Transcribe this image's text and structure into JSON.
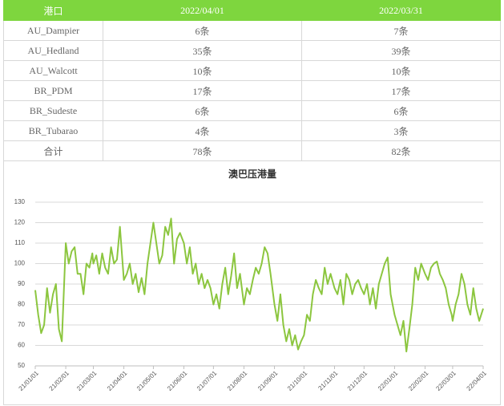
{
  "table": {
    "header": [
      "港口",
      "2022/04/01",
      "2022/03/31"
    ],
    "rows": [
      [
        "AU_Dampier",
        "6条",
        "7条"
      ],
      [
        "AU_Hedland",
        "35条",
        "39条"
      ],
      [
        "AU_Walcott",
        "10条",
        "10条"
      ],
      [
        "BR_PDM",
        "17条",
        "17条"
      ],
      [
        "BR_Sudeste",
        "6条",
        "6条"
      ],
      [
        "BR_Tubarao",
        "4条",
        "3条"
      ],
      [
        "合计",
        "78条",
        "82条"
      ]
    ]
  },
  "chart_data": {
    "type": "line",
    "title": "澳巴压港量",
    "color": "#8cc63f",
    "grid": true,
    "ylim": [
      50,
      130
    ],
    "yticks": [
      50,
      60,
      70,
      80,
      90,
      100,
      110,
      120,
      130
    ],
    "xticks": [
      "21/01/01",
      "21/02/01",
      "21/03/01",
      "21/04/01",
      "21/05/01",
      "21/06/01",
      "21/07/01",
      "21/08/01",
      "21/09/01",
      "21/10/01",
      "21/11/01",
      "21/12/01",
      "22/01/01",
      "22/02/01",
      "22/03/01",
      "22/04/01"
    ],
    "x": [
      "21/01/01",
      "21/01/04",
      "21/01/07",
      "21/01/10",
      "21/01/13",
      "21/01/16",
      "21/01/19",
      "21/01/22",
      "21/01/25",
      "21/01/28",
      "21/02/01",
      "21/02/04",
      "21/02/07",
      "21/02/10",
      "21/02/13",
      "21/02/16",
      "21/02/19",
      "21/02/22",
      "21/02/25",
      "21/02/28",
      "21/03/01",
      "21/03/04",
      "21/03/07",
      "21/03/10",
      "21/03/13",
      "21/03/16",
      "21/03/19",
      "21/03/22",
      "21/03/25",
      "21/03/28",
      "21/04/01",
      "21/04/04",
      "21/04/07",
      "21/04/10",
      "21/04/13",
      "21/04/16",
      "21/04/19",
      "21/04/22",
      "21/04/25",
      "21/04/28",
      "21/05/01",
      "21/05/04",
      "21/05/07",
      "21/05/10",
      "21/05/13",
      "21/05/16",
      "21/05/19",
      "21/05/22",
      "21/05/25",
      "21/05/28",
      "21/06/01",
      "21/06/04",
      "21/06/07",
      "21/06/10",
      "21/06/13",
      "21/06/16",
      "21/06/19",
      "21/06/22",
      "21/06/25",
      "21/06/28",
      "21/07/01",
      "21/07/04",
      "21/07/07",
      "21/07/10",
      "21/07/13",
      "21/07/16",
      "21/07/19",
      "21/07/22",
      "21/07/25",
      "21/07/28",
      "21/08/01",
      "21/08/04",
      "21/08/07",
      "21/08/10",
      "21/08/13",
      "21/08/16",
      "21/08/19",
      "21/08/22",
      "21/08/25",
      "21/08/28",
      "21/09/01",
      "21/09/04",
      "21/09/07",
      "21/09/10",
      "21/09/13",
      "21/09/16",
      "21/09/19",
      "21/09/22",
      "21/09/25",
      "21/09/28",
      "21/10/01",
      "21/10/04",
      "21/10/07",
      "21/10/10",
      "21/10/13",
      "21/10/16",
      "21/10/19",
      "21/10/22",
      "21/10/25",
      "21/10/28",
      "21/11/01",
      "21/11/04",
      "21/11/07",
      "21/11/10",
      "21/11/13",
      "21/11/16",
      "21/11/19",
      "21/11/22",
      "21/11/25",
      "21/11/28",
      "21/12/01",
      "21/12/04",
      "21/12/07",
      "21/12/10",
      "21/12/13",
      "21/12/16",
      "21/12/19",
      "21/12/22",
      "21/12/25",
      "21/12/28",
      "22/01/01",
      "22/01/04",
      "22/01/07",
      "22/01/10",
      "22/01/13",
      "22/01/16",
      "22/01/19",
      "22/01/22",
      "22/01/25",
      "22/01/28",
      "22/02/01",
      "22/02/04",
      "22/02/07",
      "22/02/10",
      "22/02/13",
      "22/02/16",
      "22/02/19",
      "22/02/22",
      "22/02/25",
      "22/02/28",
      "22/03/01",
      "22/03/04",
      "22/03/07",
      "22/03/10",
      "22/03/13",
      "22/03/16",
      "22/03/19",
      "22/03/22",
      "22/03/25",
      "22/03/28",
      "22/04/01"
    ],
    "values": [
      87,
      75,
      66,
      70,
      88,
      76,
      85,
      90,
      68,
      62,
      110,
      100,
      106,
      108,
      95,
      95,
      85,
      100,
      98,
      105,
      100,
      104,
      95,
      105,
      98,
      95,
      108,
      100,
      102,
      118,
      92,
      95,
      100,
      90,
      95,
      86,
      93,
      85,
      100,
      110,
      120,
      110,
      100,
      104,
      118,
      114,
      122,
      100,
      112,
      115,
      110,
      100,
      108,
      95,
      100,
      90,
      95,
      88,
      92,
      88,
      80,
      85,
      78,
      90,
      98,
      85,
      94,
      105,
      88,
      95,
      80,
      88,
      85,
      92,
      98,
      95,
      100,
      108,
      105,
      95,
      80,
      72,
      85,
      70,
      62,
      68,
      60,
      65,
      58,
      62,
      65,
      75,
      72,
      85,
      92,
      88,
      85,
      98,
      90,
      95,
      88,
      85,
      92,
      80,
      95,
      92,
      85,
      90,
      92,
      88,
      85,
      90,
      80,
      88,
      78,
      90,
      95,
      100,
      103,
      85,
      75,
      70,
      65,
      72,
      57,
      68,
      80,
      98,
      92,
      100,
      95,
      92,
      98,
      100,
      101,
      95,
      92,
      88,
      80,
      75,
      72,
      80,
      85,
      95,
      90,
      80,
      75,
      88,
      78,
      72,
      78
    ]
  }
}
